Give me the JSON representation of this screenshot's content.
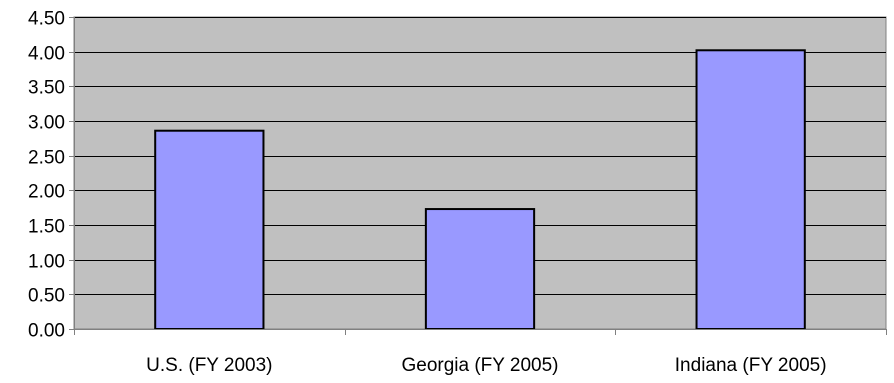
{
  "chart_data": {
    "type": "bar",
    "categories": [
      "U.S. (FY 2003)",
      "Georgia (FY 2005)",
      "Indiana (FY 2005)"
    ],
    "values": [
      2.86,
      1.73,
      4.02
    ],
    "ylim": [
      0,
      4.5
    ],
    "yticks": [
      "0.00",
      "0.50",
      "1.00",
      "1.50",
      "2.00",
      "2.50",
      "3.00",
      "3.50",
      "4.00",
      "4.50"
    ],
    "grid": true,
    "legend": "none"
  },
  "colors": {
    "plot_background": "#c0c0c0",
    "bar_fill": "#9999ff",
    "bar_stroke": "#000000",
    "gridline": "#000000",
    "axis": "#808080"
  }
}
